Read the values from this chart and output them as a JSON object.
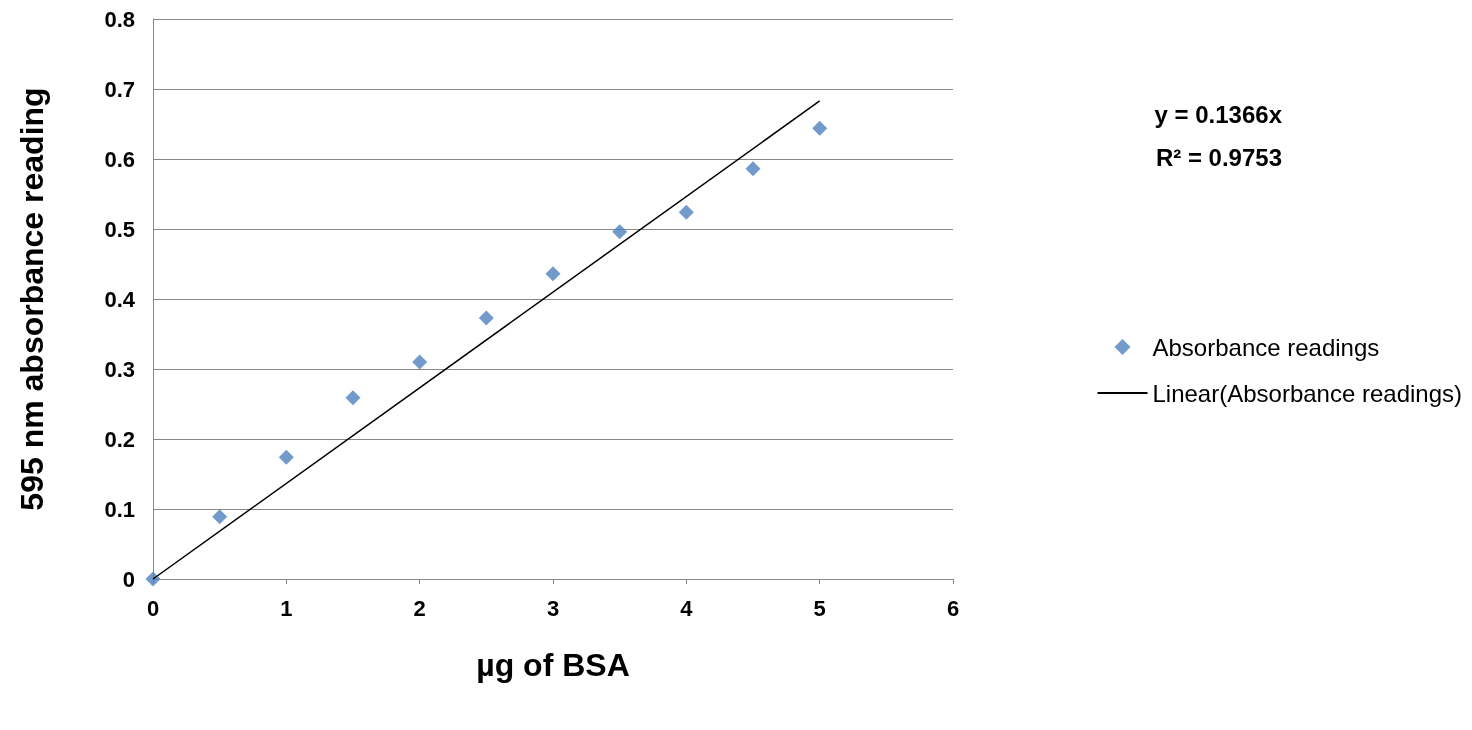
{
  "chart_data": {
    "type": "scatter",
    "xlabel": "µg of BSA",
    "ylabel": "595 nm absorbance reading",
    "xlim": [
      0,
      6
    ],
    "xticks": [
      0,
      1,
      2,
      3,
      4,
      5,
      6
    ],
    "ylim": [
      0,
      0.8
    ],
    "yticks": [
      0,
      0.1,
      0.2,
      0.3,
      0.4,
      0.5,
      0.6,
      0.7,
      0.8
    ],
    "grid": "y",
    "legend": "right",
    "series": [
      {
        "name": "Absorbance readings",
        "marker": "diamond",
        "color": "#4f81bd",
        "x": [
          0,
          0.5,
          1,
          1.5,
          2,
          2.5,
          3,
          3.5,
          4,
          4.5,
          5
        ],
        "values": [
          0,
          0.089,
          0.174,
          0.259,
          0.31,
          0.373,
          0.436,
          0.496,
          0.524,
          0.586,
          0.644
        ]
      },
      {
        "name": "Linear(Absorbance readings)",
        "type": "line",
        "marker": "none",
        "color": "#000000",
        "x": [
          0,
          5
        ],
        "values": [
          0,
          0.683
        ]
      }
    ],
    "annotations": [
      "y = 0.1366x",
      "R² = 0.9753"
    ]
  }
}
